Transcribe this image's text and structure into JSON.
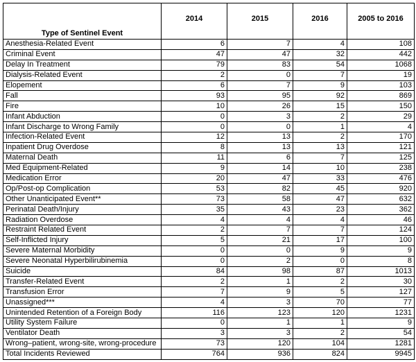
{
  "table": {
    "header": [
      "Type of Sentinel Event",
      "2014",
      "2015",
      "2016",
      "2005 to 2016"
    ],
    "rows": [
      [
        "Anesthesia-Related Event",
        6,
        7,
        4,
        108
      ],
      [
        "Criminal Event",
        47,
        47,
        32,
        442
      ],
      [
        "Delay In Treatment",
        79,
        83,
        54,
        1068
      ],
      [
        "Dialysis-Related Event",
        2,
        0,
        7,
        19
      ],
      [
        "Elopement",
        6,
        7,
        9,
        103
      ],
      [
        "Fall",
        93,
        95,
        92,
        869
      ],
      [
        "Fire",
        10,
        26,
        15,
        150
      ],
      [
        "Infant Abduction",
        0,
        3,
        2,
        29
      ],
      [
        "Infant Discharge to Wrong Family",
        0,
        0,
        1,
        4
      ],
      [
        "Infection-Related Event",
        12,
        13,
        2,
        170
      ],
      [
        "Inpatient Drug Overdose",
        8,
        13,
        13,
        121
      ],
      [
        "Maternal Death",
        11,
        6,
        7,
        125
      ],
      [
        "Med Equipment-Related",
        9,
        14,
        10,
        238
      ],
      [
        "Medication Error",
        20,
        47,
        33,
        476
      ],
      [
        "Op/Post-op Complication",
        53,
        82,
        45,
        920
      ],
      [
        "Other Unanticipated Event**",
        73,
        58,
        47,
        632
      ],
      [
        "Perinatal Death/Injury",
        35,
        43,
        23,
        362
      ],
      [
        "Radiation Overdose",
        4,
        4,
        4,
        46
      ],
      [
        "Restraint Related Event",
        2,
        7,
        7,
        124
      ],
      [
        "Self-Inflicted Injury",
        5,
        21,
        17,
        100
      ],
      [
        "Severe Maternal Morbidity",
        0,
        0,
        9,
        9
      ],
      [
        "Severe Neonatal Hyperbilirubinemia",
        0,
        2,
        0,
        8
      ],
      [
        "Suicide",
        84,
        98,
        87,
        1013
      ],
      [
        "Transfer-Related Event",
        2,
        1,
        2,
        30
      ],
      [
        "Transfusion Error",
        7,
        9,
        5,
        127
      ],
      [
        "Unassigned***",
        4,
        3,
        70,
        77
      ],
      [
        "Unintended Retention of a Foreign Body",
        116,
        123,
        120,
        1231
      ],
      [
        "Utility System Failure",
        0,
        1,
        1,
        9
      ],
      [
        "Ventilator Death",
        3,
        3,
        2,
        54
      ],
      [
        "Wrong–patient, wrong-site, wrong-procedure",
        73,
        120,
        104,
        1281
      ],
      [
        "Total Incidents Reviewed",
        764,
        936,
        824,
        9945
      ]
    ]
  }
}
